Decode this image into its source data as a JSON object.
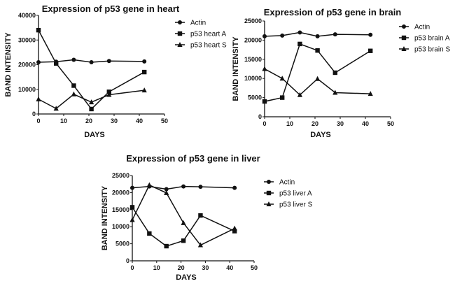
{
  "chart_data": [
    {
      "type": "line",
      "title": "Expression  of p53 gene in heart",
      "xlabel": "DAYS",
      "ylabel": "BAND INTENSITY",
      "xlim": [
        0,
        50
      ],
      "ylim": [
        0,
        40000
      ],
      "xticks": [
        0,
        10,
        20,
        30,
        40,
        50
      ],
      "yticks": [
        0,
        10000,
        20000,
        30000,
        40000
      ],
      "grid": false,
      "legend": "right",
      "x": [
        0,
        7,
        14,
        21,
        28,
        42
      ],
      "series": [
        {
          "name": "Actin",
          "marker": "circle",
          "values": [
            21000,
            21200,
            22000,
            21000,
            21500,
            21300
          ]
        },
        {
          "name": "p53 heart A",
          "marker": "square",
          "values": [
            34000,
            20500,
            11500,
            2000,
            9000,
            17000
          ]
        },
        {
          "name": "p53 heart S",
          "marker": "triangle",
          "values": [
            6000,
            2200,
            8000,
            4800,
            7800,
            9600
          ]
        }
      ]
    },
    {
      "type": "line",
      "title": "Expression  of p53 gene in brain",
      "xlabel": "DAYS",
      "ylabel": "BAND INTENSITY",
      "xlim": [
        0,
        50
      ],
      "ylim": [
        0,
        25000
      ],
      "xticks": [
        0,
        10,
        20,
        30,
        40,
        50
      ],
      "yticks": [
        0,
        5000,
        10000,
        15000,
        20000,
        25000
      ],
      "grid": false,
      "legend": "right",
      "x": [
        0,
        7,
        14,
        21,
        28,
        42
      ],
      "series": [
        {
          "name": "Actin",
          "marker": "circle",
          "values": [
            21000,
            21200,
            22000,
            21000,
            21500,
            21400
          ]
        },
        {
          "name": "p53 brain A",
          "marker": "square",
          "values": [
            4000,
            5000,
            19000,
            17300,
            11500,
            17200
          ]
        },
        {
          "name": "p53 brain S",
          "marker": "triangle",
          "values": [
            12500,
            10000,
            5700,
            9900,
            6300,
            6000
          ]
        }
      ]
    },
    {
      "type": "line",
      "title": "Expression  of p53 gene in liver",
      "xlabel": "DAYS",
      "ylabel": "BAND INTENSITY",
      "xlim": [
        0,
        50
      ],
      "ylim": [
        0,
        25000
      ],
      "xticks": [
        0,
        10,
        20,
        30,
        40,
        50
      ],
      "yticks": [
        0,
        5000,
        10000,
        15000,
        20000,
        25000
      ],
      "grid": false,
      "legend": "right",
      "x": [
        0,
        7,
        14,
        21,
        28,
        42
      ],
      "series": [
        {
          "name": "Actin",
          "marker": "circle",
          "values": [
            21400,
            21800,
            21000,
            21800,
            21700,
            21400
          ]
        },
        {
          "name": "p53 liver A",
          "marker": "square",
          "values": [
            15700,
            8000,
            4300,
            5900,
            13300,
            8700
          ]
        },
        {
          "name": "p53 liver S",
          "marker": "triangle",
          "values": [
            12000,
            22200,
            19900,
            11100,
            4600,
            9500
          ]
        }
      ]
    }
  ]
}
